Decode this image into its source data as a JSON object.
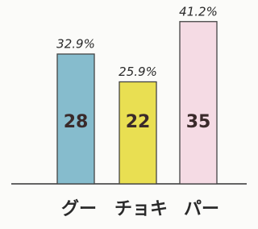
{
  "chart_data": {
    "type": "bar",
    "categories": [
      "グー",
      "チョキ",
      "パー"
    ],
    "series": [
      {
        "values": [
          28,
          22,
          35
        ]
      }
    ],
    "colors": [
      "#86bccd",
      "#e9df52",
      "#f5dbe4"
    ],
    "percent_labels": [
      "32.9%",
      "25.9%",
      "41.2%"
    ]
  }
}
